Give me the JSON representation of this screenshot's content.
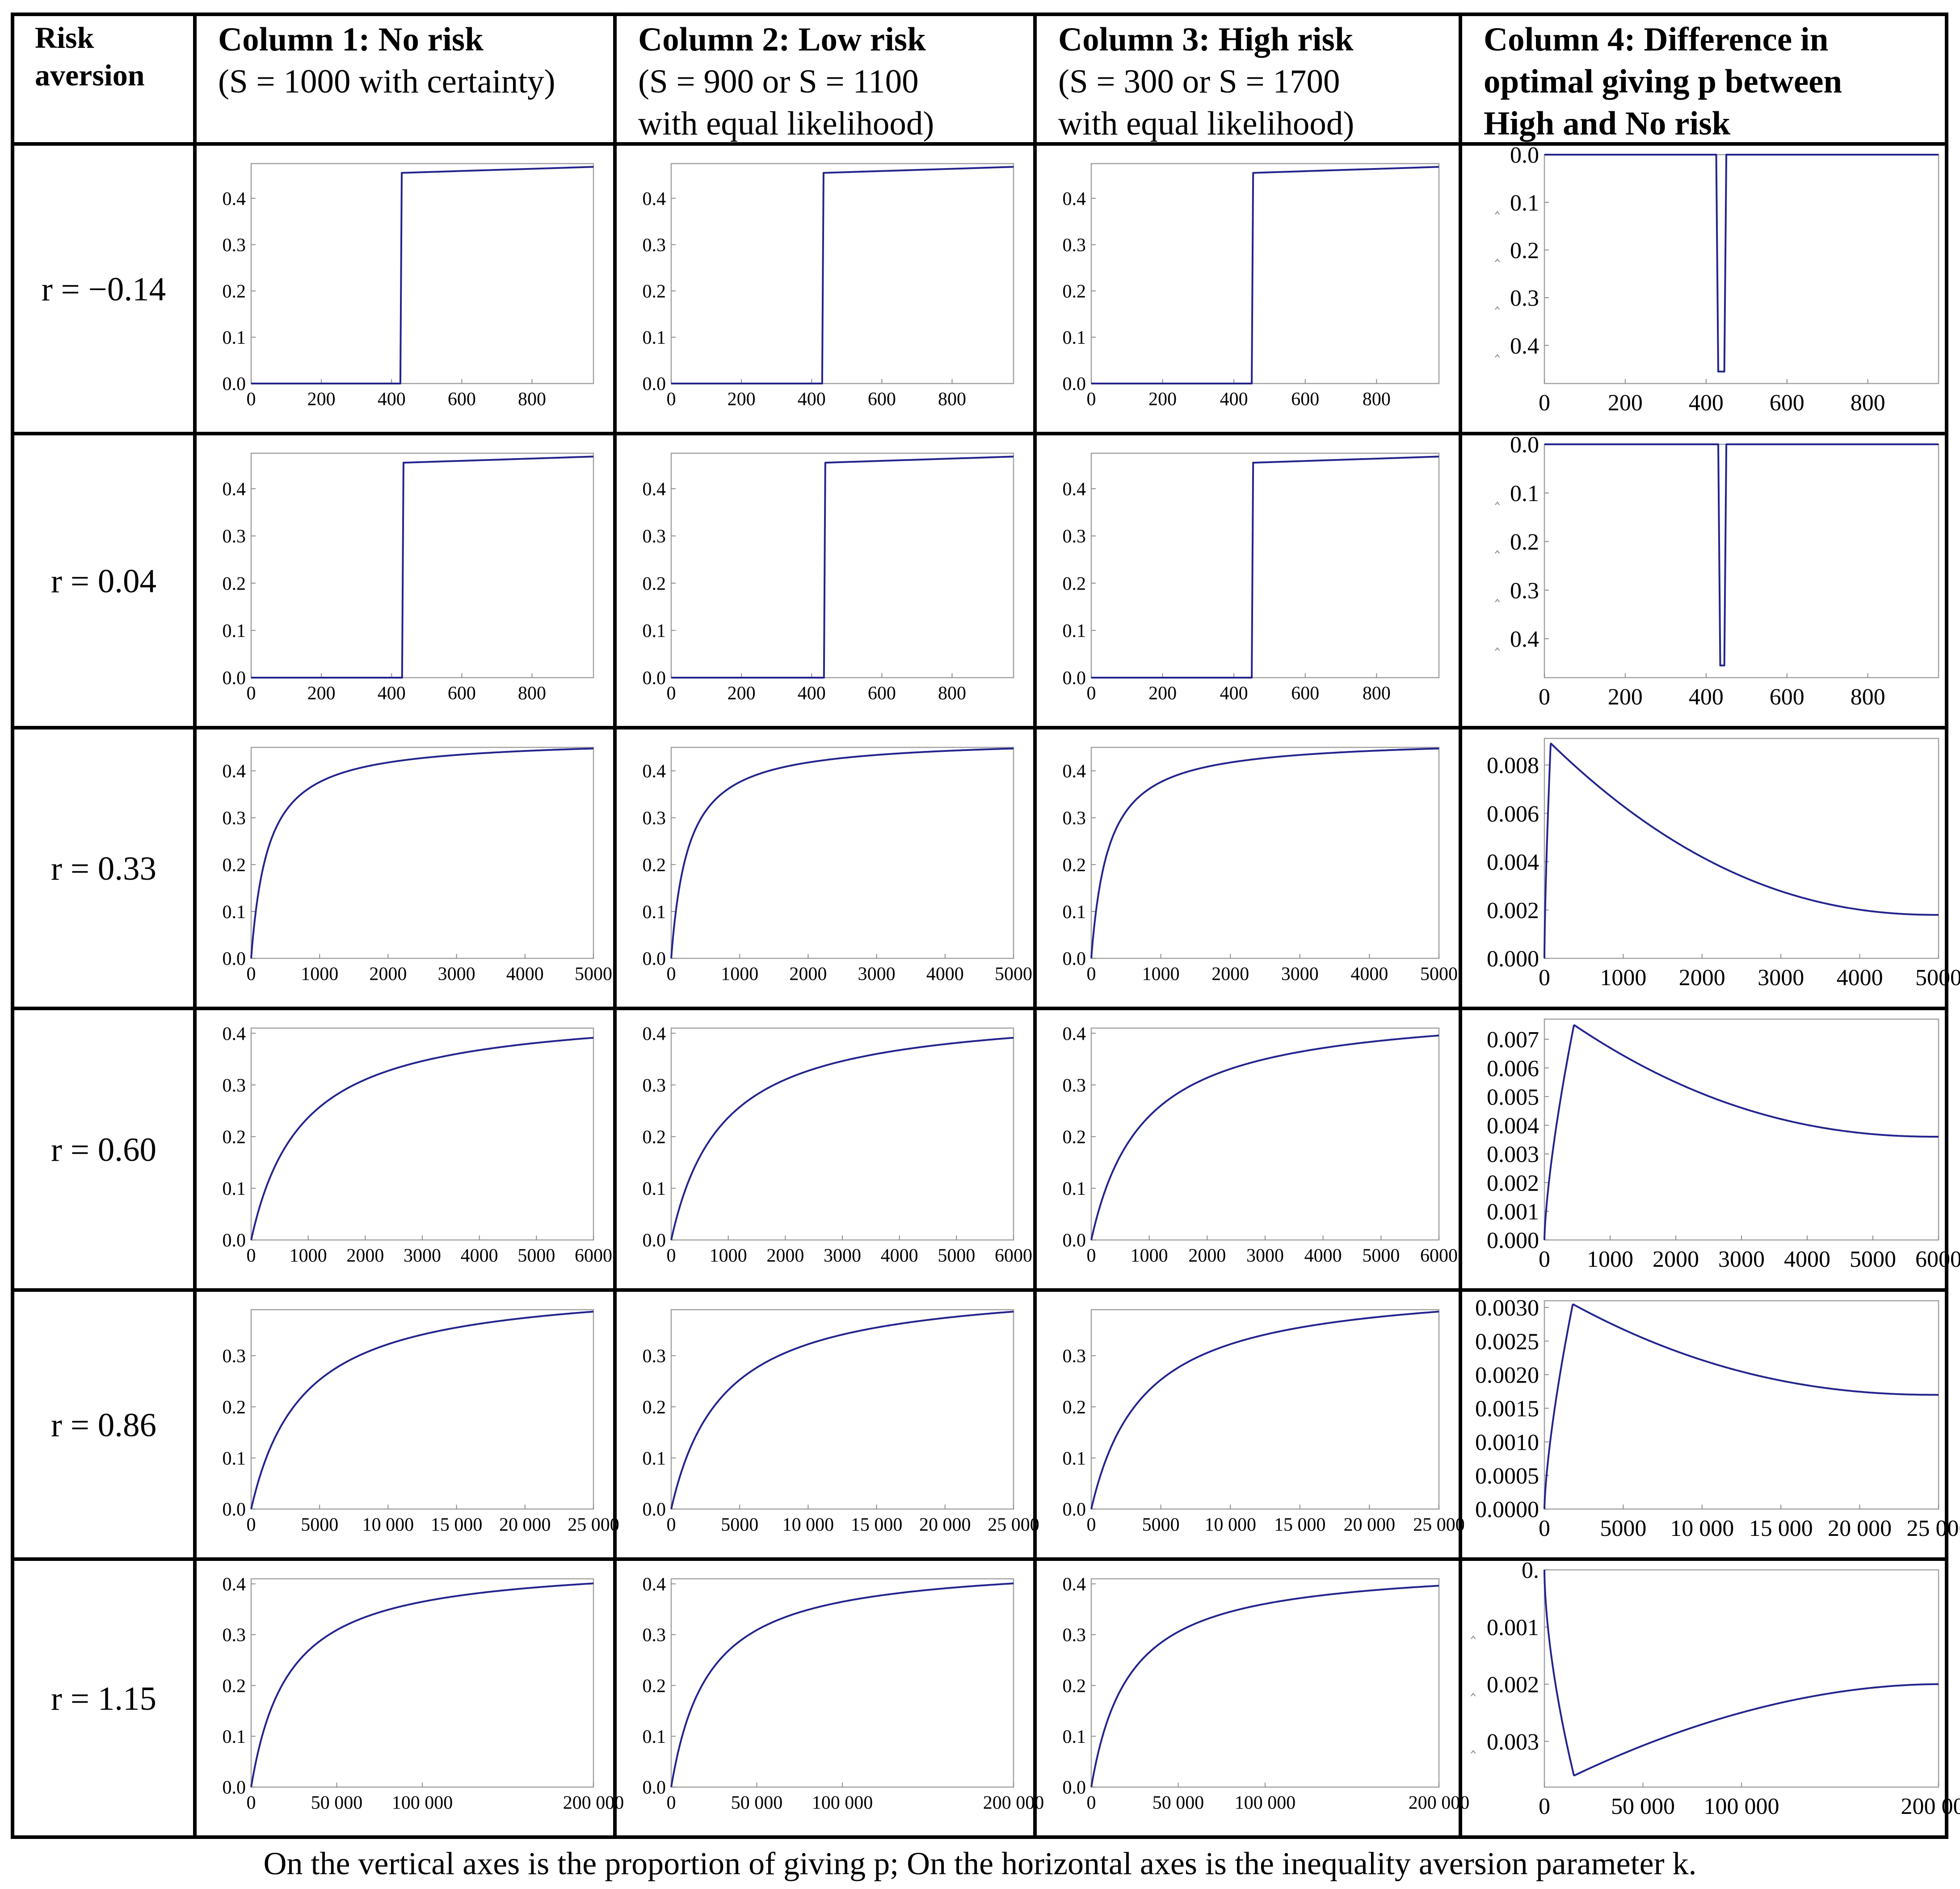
{
  "headers": {
    "risk": [
      "Risk",
      "aversion"
    ],
    "col1": {
      "title": "Column 1: No risk",
      "sub1": "(S = 1000 with certainty)",
      "sub2": ""
    },
    "col2": {
      "title": "Column 2: Low risk",
      "sub1": "(S = 900 or S = 1100",
      "sub2": "with equal likelihood)"
    },
    "col3": {
      "title": "Column 3: High risk",
      "sub1": "(S = 300 or S = 1700",
      "sub2": "with equal likelihood)"
    },
    "col4": {
      "title1": "Column 4: Difference in",
      "title2": "optimal giving p between",
      "title3": "High and No risk"
    }
  },
  "rows": [
    "r = −0.14",
    "r = 0.04",
    "r = 0.33",
    "r = 0.60",
    "r = 0.86",
    "r = 1.15"
  ],
  "caption": "On the vertical axes is the proportion of giving p; On the horizontal axes is the inequality aversion parameter k.",
  "colors": {
    "curve": "#23238e",
    "frame": "#a0a0a0",
    "grid": "#000000"
  },
  "chart_data": [
    {
      "id": "r1c1",
      "type": "line",
      "title": "No risk, r = -0.14",
      "xlabel": "k",
      "ylabel": "p",
      "xlim": [
        0,
        975
      ],
      "ylim": [
        0,
        0.475
      ],
      "xticks": [
        0,
        200,
        400,
        600,
        800
      ],
      "yticks": [
        0.0,
        0.1,
        0.2,
        0.3,
        0.4
      ],
      "curve": "step",
      "step": 425,
      "pmax": 0.468
    },
    {
      "id": "r1c2",
      "type": "line",
      "title": "Low risk, r = -0.14",
      "xlabel": "k",
      "ylabel": "p",
      "xlim": [
        0,
        975
      ],
      "ylim": [
        0,
        0.475
      ],
      "xticks": [
        0,
        200,
        400,
        600,
        800
      ],
      "yticks": [
        0.0,
        0.1,
        0.2,
        0.3,
        0.4
      ],
      "curve": "step",
      "step": 430,
      "pmax": 0.468
    },
    {
      "id": "r1c3",
      "type": "line",
      "title": "High risk, r = -0.14",
      "xlabel": "k",
      "ylabel": "p",
      "xlim": [
        0,
        975
      ],
      "ylim": [
        0,
        0.475
      ],
      "xticks": [
        0,
        200,
        400,
        600,
        800
      ],
      "yticks": [
        0.0,
        0.1,
        0.2,
        0.3,
        0.4
      ],
      "curve": "step",
      "step": 450,
      "pmax": 0.468
    },
    {
      "id": "r1c4",
      "type": "line",
      "title": "Difference, r = -0.14",
      "xlabel": "k",
      "ylabel": "difference in p",
      "xlim": [
        0,
        975
      ],
      "ylim": [
        -0.48,
        0.0
      ],
      "xticks": [
        0,
        200,
        400,
        600,
        800
      ],
      "yticks": [
        0.0,
        -0.1,
        -0.2,
        -0.3,
        -0.4
      ],
      "yticklabels": [
        "0.0",
        "0.1",
        "0.2",
        "0.3",
        "0.4"
      ],
      "curve": "dip",
      "dipStart": 425,
      "dipEnd": 450,
      "dipDepth": -0.455
    },
    {
      "id": "r2c1",
      "type": "line",
      "title": "No risk, r = 0.04",
      "xlabel": "k",
      "ylabel": "p",
      "xlim": [
        0,
        975
      ],
      "ylim": [
        0,
        0.475
      ],
      "xticks": [
        0,
        200,
        400,
        600,
        800
      ],
      "yticks": [
        0.0,
        0.1,
        0.2,
        0.3,
        0.4
      ],
      "curve": "step",
      "step": 430,
      "pmax": 0.468
    },
    {
      "id": "r2c2",
      "type": "line",
      "title": "Low risk, r = 0.04",
      "xlabel": "k",
      "ylabel": "p",
      "xlim": [
        0,
        975
      ],
      "ylim": [
        0,
        0.475
      ],
      "xticks": [
        0,
        200,
        400,
        600,
        800
      ],
      "yticks": [
        0.0,
        0.1,
        0.2,
        0.3,
        0.4
      ],
      "curve": "step",
      "step": 435,
      "pmax": 0.468
    },
    {
      "id": "r2c3",
      "type": "line",
      "title": "High risk, r = 0.04",
      "xlabel": "k",
      "ylabel": "p",
      "xlim": [
        0,
        975
      ],
      "ylim": [
        0,
        0.475
      ],
      "xticks": [
        0,
        200,
        400,
        600,
        800
      ],
      "yticks": [
        0.0,
        0.1,
        0.2,
        0.3,
        0.4
      ],
      "curve": "step",
      "step": 450,
      "pmax": 0.468
    },
    {
      "id": "r2c4",
      "type": "line",
      "title": "Difference, r = 0.04",
      "xlabel": "k",
      "ylabel": "difference in p",
      "xlim": [
        0,
        975
      ],
      "ylim": [
        -0.48,
        0.0
      ],
      "xticks": [
        0,
        200,
        400,
        600,
        800
      ],
      "yticks": [
        0.0,
        -0.1,
        -0.2,
        -0.3,
        -0.4
      ],
      "yticklabels": [
        "0.0",
        "0.1",
        "0.2",
        "0.3",
        "0.4"
      ],
      "curve": "dip",
      "dipStart": 430,
      "dipEnd": 450,
      "dipDepth": -0.455
    },
    {
      "id": "r3c1",
      "type": "line",
      "title": "No risk, r = 0.33",
      "xlabel": "k",
      "ylabel": "p",
      "xlim": [
        0,
        5000
      ],
      "ylim": [
        0,
        0.45
      ],
      "xticks": [
        0,
        1000,
        2000,
        3000,
        4000,
        5000
      ],
      "yticks": [
        0.0,
        0.1,
        0.2,
        0.3,
        0.4
      ],
      "curve": "sat",
      "a": 0.47,
      "b": 250
    },
    {
      "id": "r3c2",
      "type": "line",
      "title": "Low risk, r = 0.33",
      "xlabel": "k",
      "ylabel": "p",
      "xlim": [
        0,
        5000
      ],
      "ylim": [
        0,
        0.45
      ],
      "xticks": [
        0,
        1000,
        2000,
        3000,
        4000,
        5000
      ],
      "yticks": [
        0.0,
        0.1,
        0.2,
        0.3,
        0.4
      ],
      "curve": "sat",
      "a": 0.47,
      "b": 250
    },
    {
      "id": "r3c3",
      "type": "line",
      "title": "High risk, r = 0.33",
      "xlabel": "k",
      "ylabel": "p",
      "xlim": [
        0,
        5000
      ],
      "ylim": [
        0,
        0.45
      ],
      "xticks": [
        0,
        1000,
        2000,
        3000,
        4000,
        5000
      ],
      "yticks": [
        0.0,
        0.1,
        0.2,
        0.3,
        0.4
      ],
      "curve": "sat",
      "a": 0.47,
      "b": 250
    },
    {
      "id": "r3c4",
      "type": "line",
      "title": "Difference, r = 0.33",
      "xlabel": "k",
      "ylabel": "difference in p",
      "xlim": [
        0,
        5000
      ],
      "ylim": [
        0,
        0.0091
      ],
      "xticks": [
        0,
        1000,
        2000,
        3000,
        4000,
        5000
      ],
      "yticks": [
        0.0,
        0.002,
        0.004,
        0.006,
        0.008
      ],
      "yticklabels": [
        "0.000",
        "0.002",
        "0.004",
        "0.006",
        "0.008"
      ],
      "curve": "hump",
      "peak": 0.0089,
      "peakAt": 80,
      "tail": 0.0018
    },
    {
      "id": "r4c1",
      "type": "line",
      "title": "No risk, r = 0.60",
      "xlabel": "k",
      "ylabel": "p",
      "xlim": [
        0,
        6000
      ],
      "ylim": [
        0,
        0.41
      ],
      "xticks": [
        0,
        1000,
        2000,
        3000,
        4000,
        5000,
        6000
      ],
      "yticks": [
        0.0,
        0.1,
        0.2,
        0.3,
        0.4
      ],
      "curve": "sat",
      "a": 0.45,
      "b": 900
    },
    {
      "id": "r4c2",
      "type": "line",
      "title": "Low risk, r = 0.60",
      "xlabel": "k",
      "ylabel": "p",
      "xlim": [
        0,
        6000
      ],
      "ylim": [
        0,
        0.41
      ],
      "xticks": [
        0,
        1000,
        2000,
        3000,
        4000,
        5000,
        6000
      ],
      "yticks": [
        0.0,
        0.1,
        0.2,
        0.3,
        0.4
      ],
      "curve": "sat",
      "a": 0.45,
      "b": 900
    },
    {
      "id": "r4c3",
      "type": "line",
      "title": "High risk, r = 0.60",
      "xlabel": "k",
      "ylabel": "p",
      "xlim": [
        0,
        6000
      ],
      "ylim": [
        0,
        0.41
      ],
      "xticks": [
        0,
        1000,
        2000,
        3000,
        4000,
        5000,
        6000
      ],
      "yticks": [
        0.0,
        0.1,
        0.2,
        0.3,
        0.4
      ],
      "curve": "sat",
      "a": 0.455,
      "b": 900
    },
    {
      "id": "r4c4",
      "type": "line",
      "title": "Difference, r = 0.60",
      "xlabel": "k",
      "ylabel": "difference in p",
      "xlim": [
        0,
        6000
      ],
      "ylim": [
        0,
        0.0077
      ],
      "xticks": [
        0,
        1000,
        2000,
        3000,
        4000,
        5000,
        6000
      ],
      "yticks": [
        0.0,
        0.001,
        0.002,
        0.003,
        0.004,
        0.005,
        0.006,
        0.007
      ],
      "yticklabels": [
        "0.000",
        "0.001",
        "0.002",
        "0.003",
        "0.004",
        "0.005",
        "0.006",
        "0.007"
      ],
      "curve": "hump",
      "peak": 0.0075,
      "peakAt": 450,
      "tail": 0.0036
    },
    {
      "id": "r5c1",
      "type": "line",
      "title": "No risk, r = 0.86",
      "xlabel": "k",
      "ylabel": "p",
      "xlim": [
        0,
        25000
      ],
      "ylim": [
        0,
        0.39
      ],
      "xticks": [
        0,
        5000,
        10000,
        15000,
        20000,
        25000
      ],
      "xticklabels": [
        "0",
        "5000",
        "10 000",
        "15 000",
        "20 000",
        "25 000"
      ],
      "yticks": [
        0.0,
        0.1,
        0.2,
        0.3
      ],
      "curve": "sat",
      "a": 0.445,
      "b": 3800
    },
    {
      "id": "r5c2",
      "type": "line",
      "title": "Low risk, r = 0.86",
      "xlabel": "k",
      "ylabel": "p",
      "xlim": [
        0,
        25000
      ],
      "ylim": [
        0,
        0.39
      ],
      "xticks": [
        0,
        5000,
        10000,
        15000,
        20000,
        25000
      ],
      "xticklabels": [
        "0",
        "5000",
        "10 000",
        "15 000",
        "20 000",
        "25 000"
      ],
      "yticks": [
        0.0,
        0.1,
        0.2,
        0.3
      ],
      "curve": "sat",
      "a": 0.445,
      "b": 3800
    },
    {
      "id": "r5c3",
      "type": "line",
      "title": "High risk, r = 0.86",
      "xlabel": "k",
      "ylabel": "p",
      "xlim": [
        0,
        25000
      ],
      "ylim": [
        0,
        0.39
      ],
      "xticks": [
        0,
        5000,
        10000,
        15000,
        20000,
        25000
      ],
      "xticklabels": [
        "0",
        "5000",
        "10 000",
        "15 000",
        "20 000",
        "25 000"
      ],
      "yticks": [
        0.0,
        0.1,
        0.2,
        0.3
      ],
      "curve": "sat",
      "a": 0.445,
      "b": 3800
    },
    {
      "id": "r5c4",
      "type": "line",
      "title": "Difference, r = 0.86",
      "xlabel": "k",
      "ylabel": "difference in p",
      "xlim": [
        0,
        25000
      ],
      "ylim": [
        0,
        0.0031
      ],
      "xticks": [
        0,
        5000,
        10000,
        15000,
        20000,
        25000
      ],
      "xticklabels": [
        "0",
        "5000",
        "10 000",
        "15 000",
        "20 000",
        "25 000"
      ],
      "yticks": [
        0.0,
        0.0005,
        0.001,
        0.0015,
        0.002,
        0.0025,
        0.003
      ],
      "yticklabels": [
        "0.0000",
        "0.0005",
        "0.0010",
        "0.0015",
        "0.0020",
        "0.0025",
        "0.0030"
      ],
      "curve": "hump",
      "peak": 0.00305,
      "peakAt": 1800,
      "tail": 0.0017
    },
    {
      "id": "r6c1",
      "type": "line",
      "title": "No risk, r = 1.15",
      "xlabel": "k",
      "ylabel": "p",
      "xlim": [
        0,
        200000
      ],
      "ylim": [
        0,
        0.41
      ],
      "xticks": [
        0,
        50000,
        100000,
        200000
      ],
      "xticklabels": [
        "0",
        "50 000",
        "100 000",
        "200 000"
      ],
      "yticks": [
        0.0,
        0.1,
        0.2,
        0.3,
        0.4
      ],
      "curve": "sat",
      "a": 0.445,
      "b": 22000
    },
    {
      "id": "r6c2",
      "type": "line",
      "title": "Low risk, r = 1.15",
      "xlabel": "k",
      "ylabel": "p",
      "xlim": [
        0,
        200000
      ],
      "ylim": [
        0,
        0.41
      ],
      "xticks": [
        0,
        50000,
        100000,
        200000
      ],
      "xticklabels": [
        "0",
        "50 000",
        "100 000",
        "200 000"
      ],
      "yticks": [
        0.0,
        0.1,
        0.2,
        0.3,
        0.4
      ],
      "curve": "sat",
      "a": 0.445,
      "b": 22000
    },
    {
      "id": "r6c3",
      "type": "line",
      "title": "High risk, r = 1.15",
      "xlabel": "k",
      "ylabel": "p",
      "xlim": [
        0,
        200000
      ],
      "ylim": [
        0,
        0.41
      ],
      "xticks": [
        0,
        50000,
        100000,
        200000
      ],
      "xticklabels": [
        "0",
        "50 000",
        "100 000",
        "200 000"
      ],
      "yticks": [
        0.0,
        0.1,
        0.2,
        0.3,
        0.4
      ],
      "curve": "sat",
      "a": 0.44,
      "b": 22000
    },
    {
      "id": "r6c4",
      "type": "line",
      "title": "Difference, r = 1.15",
      "xlabel": "k",
      "ylabel": "difference in p",
      "xlim": [
        0,
        200000
      ],
      "ylim": [
        -0.0038,
        0.0
      ],
      "xticks": [
        0,
        50000,
        100000,
        200000
      ],
      "xticklabels": [
        "0",
        "50 000",
        "100 000",
        "200 000"
      ],
      "yticks": [
        0.0,
        -0.001,
        -0.002,
        -0.003
      ],
      "yticklabels": [
        "0.",
        "0.001",
        "0.002",
        "0.003"
      ],
      "curve": "trough",
      "trough": -0.0036,
      "troughAt": 15000,
      "tail": -0.002
    }
  ]
}
